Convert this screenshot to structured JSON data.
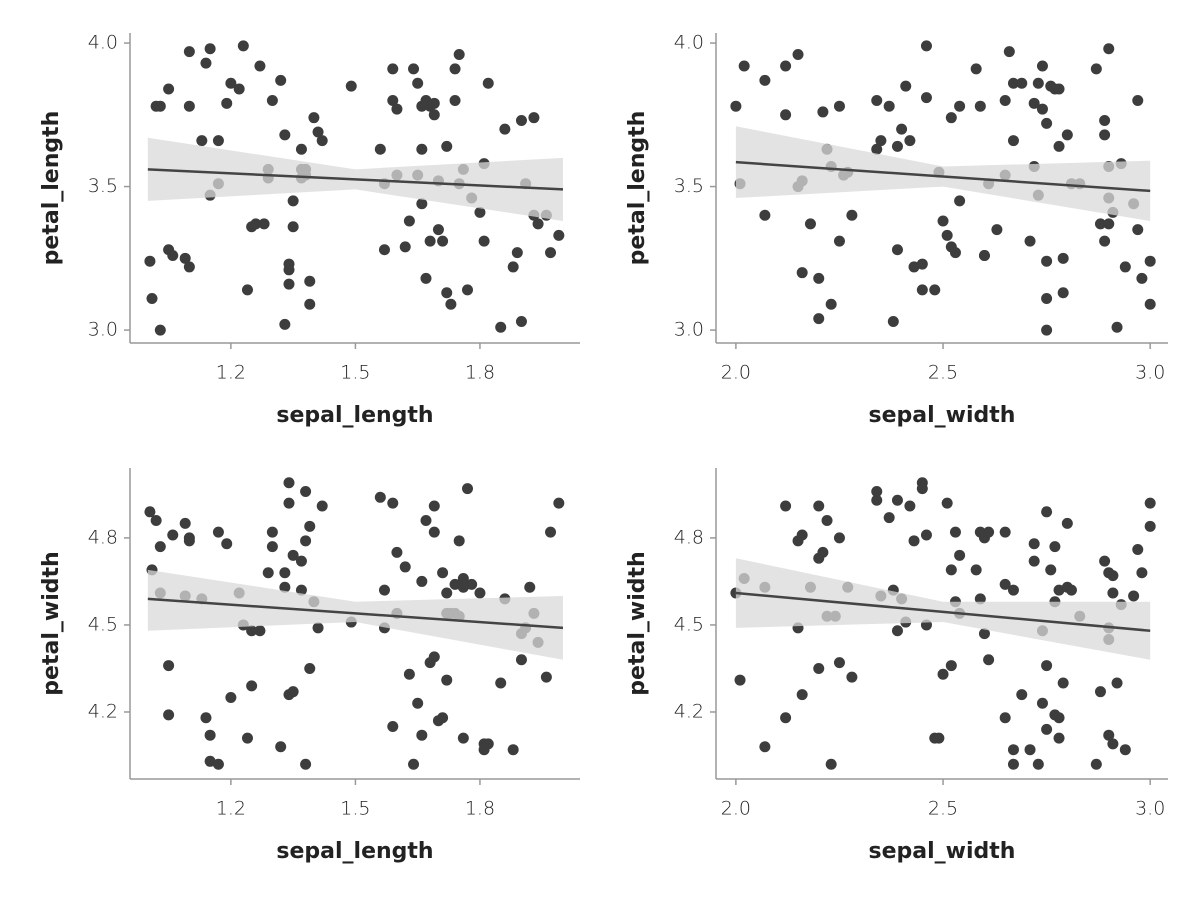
{
  "chart_data": [
    {
      "type": "scatter",
      "x_label": "sepal_length",
      "y_label": "petal_length",
      "color": "#3d3d3d",
      "xlim": [
        0.957,
        2.041
      ],
      "ylim": [
        2.955,
        4.035
      ],
      "xticks": [
        1.2,
        1.5,
        1.8
      ],
      "yticks": [
        {
          "value": 3.0,
          "label": "3.0"
        },
        3.5,
        {
          "value": 4.0,
          "label": "4.0"
        }
      ],
      "x": [
        1.005,
        1.01,
        1.02,
        1.03,
        1.03,
        1.05,
        1.05,
        1.06,
        1.09,
        1.1,
        1.1,
        1.1,
        1.13,
        1.14,
        1.15,
        1.15,
        1.17,
        1.17,
        1.19,
        1.2,
        1.22,
        1.23,
        1.24,
        1.25,
        1.26,
        1.27,
        1.28,
        1.29,
        1.29,
        1.3,
        1.32,
        1.33,
        1.33,
        1.34,
        1.34,
        1.34,
        1.35,
        1.35,
        1.37,
        1.37,
        1.37,
        1.38,
        1.38,
        1.39,
        1.39,
        1.4,
        1.41,
        1.42,
        1.49,
        1.56,
        1.57,
        1.57,
        1.59,
        1.59,
        1.6,
        1.6,
        1.62,
        1.63,
        1.64,
        1.65,
        1.65,
        1.66,
        1.66,
        1.66,
        1.67,
        1.67,
        1.68,
        1.68,
        1.69,
        1.69,
        1.7,
        1.7,
        1.71,
        1.72,
        1.72,
        1.73,
        1.74,
        1.74,
        1.75,
        1.75,
        1.76,
        1.77,
        1.78,
        1.8,
        1.81,
        1.81,
        1.82,
        1.85,
        1.86,
        1.88,
        1.89,
        1.9,
        1.9,
        1.91,
        1.93,
        1.93,
        1.94,
        1.96,
        1.97,
        1.99
      ],
      "values": [
        3.24,
        3.11,
        3.78,
        3.0,
        3.78,
        3.84,
        3.28,
        3.26,
        3.25,
        3.97,
        3.78,
        3.22,
        3.66,
        3.93,
        3.47,
        3.98,
        3.51,
        3.66,
        3.79,
        3.86,
        3.84,
        3.99,
        3.14,
        3.36,
        3.37,
        3.92,
        3.37,
        3.56,
        3.53,
        3.8,
        3.87,
        3.02,
        3.68,
        3.21,
        3.23,
        3.16,
        3.36,
        3.45,
        3.56,
        3.53,
        3.63,
        3.54,
        3.56,
        3.09,
        3.17,
        3.74,
        3.69,
        3.66,
        3.85,
        3.63,
        3.28,
        3.51,
        3.91,
        3.8,
        3.77,
        3.54,
        3.29,
        3.38,
        3.91,
        3.86,
        3.54,
        3.44,
        3.63,
        3.78,
        3.8,
        3.18,
        3.31,
        3.78,
        3.75,
        3.79,
        3.35,
        3.52,
        3.31,
        3.64,
        3.13,
        3.09,
        3.91,
        3.8,
        3.51,
        3.96,
        3.56,
        3.14,
        3.46,
        3.41,
        3.31,
        3.58,
        3.86,
        3.01,
        3.7,
        3.22,
        3.27,
        3.03,
        3.73,
        3.51,
        3.74,
        3.4,
        3.37,
        3.4,
        3.27,
        3.33
      ],
      "trend": {
        "x": [
          1.0,
          1.5,
          2.0
        ],
        "y": [
          3.56,
          3.525,
          3.49
        ],
        "upper": [
          3.67,
          3.56,
          3.6
        ],
        "lower": [
          3.45,
          3.49,
          3.38
        ]
      }
    },
    {
      "type": "scatter",
      "x_label": "sepal_width",
      "y_label": "petal_length",
      "color": "#3d3d3d",
      "xlim": [
        1.952,
        3.043
      ],
      "ylim": [
        2.955,
        4.035
      ],
      "xticks": [
        {
          "value": 2.0,
          "label": "2.0"
        },
        2.5,
        {
          "value": 3.0,
          "label": "3.0"
        }
      ],
      "yticks": [
        {
          "value": 3.0,
          "label": "3.0"
        },
        3.5,
        {
          "value": 4.0,
          "label": "4.0"
        }
      ],
      "x": [
        2.0,
        2.01,
        2.02,
        2.07,
        2.07,
        2.12,
        2.12,
        2.15,
        2.15,
        2.16,
        2.16,
        2.18,
        2.2,
        2.2,
        2.21,
        2.22,
        2.23,
        2.23,
        2.25,
        2.25,
        2.26,
        2.27,
        2.28,
        2.34,
        2.34,
        2.35,
        2.37,
        2.38,
        2.39,
        2.39,
        2.4,
        2.41,
        2.42,
        2.43,
        2.45,
        2.45,
        2.46,
        2.46,
        2.48,
        2.49,
        2.5,
        2.51,
        2.52,
        2.52,
        2.53,
        2.54,
        2.54,
        2.58,
        2.59,
        2.6,
        2.6,
        2.61,
        2.63,
        2.65,
        2.65,
        2.66,
        2.67,
        2.67,
        2.69,
        2.71,
        2.72,
        2.72,
        2.73,
        2.73,
        2.74,
        2.74,
        2.75,
        2.75,
        2.75,
        2.75,
        2.76,
        2.77,
        2.78,
        2.78,
        2.79,
        2.79,
        2.8,
        2.81,
        2.83,
        2.87,
        2.88,
        2.89,
        2.89,
        2.89,
        2.9,
        2.9,
        2.9,
        2.9,
        2.91,
        2.92,
        2.93,
        2.94,
        2.96,
        2.97,
        2.97,
        2.98,
        3.0,
        3.0
      ],
      "values": [
        3.78,
        3.51,
        3.92,
        3.4,
        3.87,
        3.92,
        3.75,
        3.96,
        3.5,
        3.52,
        3.2,
        3.37,
        3.18,
        3.04,
        3.76,
        3.63,
        3.09,
        3.57,
        3.31,
        3.78,
        3.54,
        3.55,
        3.4,
        3.8,
        3.63,
        3.66,
        3.78,
        3.03,
        3.64,
        3.28,
        3.7,
        3.85,
        3.66,
        3.22,
        3.23,
        3.14,
        3.81,
        3.99,
        3.14,
        3.55,
        3.38,
        3.33,
        3.29,
        3.74,
        3.27,
        3.78,
        3.45,
        3.91,
        3.78,
        3.26,
        3.26,
        3.51,
        3.35,
        3.54,
        3.8,
        3.97,
        3.66,
        3.86,
        3.86,
        3.31,
        3.57,
        3.79,
        3.47,
        3.86,
        3.92,
        3.77,
        3.24,
        3.72,
        3.11,
        3.0,
        3.85,
        3.84,
        3.64,
        3.84,
        3.25,
        3.13,
        3.68,
        3.51,
        3.51,
        3.91,
        3.37,
        3.73,
        3.68,
        3.31,
        3.46,
        3.98,
        3.37,
        3.57,
        3.41,
        3.01,
        3.58,
        3.22,
        3.44,
        3.35,
        3.8,
        3.18,
        3.24,
        3.09
      ],
      "trend": {
        "x": [
          2.0,
          2.5,
          3.0
        ],
        "y": [
          3.585,
          3.535,
          3.485
        ],
        "upper": [
          3.71,
          3.57,
          3.59
        ],
        "lower": [
          3.46,
          3.5,
          3.38
        ]
      }
    },
    {
      "type": "scatter",
      "x_label": "sepal_length",
      "y_label": "petal_width",
      "color": "#3d3d3d",
      "xlim": [
        0.957,
        2.041
      ],
      "ylim": [
        3.969,
        5.041
      ],
      "xticks": [
        1.2,
        1.5,
        1.8
      ],
      "yticks": [
        4.2,
        4.5,
        4.8
      ],
      "x": [
        1.005,
        1.01,
        1.02,
        1.03,
        1.03,
        1.05,
        1.05,
        1.06,
        1.09,
        1.09,
        1.1,
        1.1,
        1.13,
        1.14,
        1.15,
        1.15,
        1.17,
        1.17,
        1.19,
        1.2,
        1.22,
        1.23,
        1.24,
        1.25,
        1.25,
        1.27,
        1.29,
        1.3,
        1.3,
        1.32,
        1.33,
        1.33,
        1.34,
        1.34,
        1.34,
        1.35,
        1.35,
        1.37,
        1.37,
        1.38,
        1.38,
        1.38,
        1.39,
        1.39,
        1.4,
        1.41,
        1.42,
        1.49,
        1.56,
        1.57,
        1.57,
        1.59,
        1.6,
        1.6,
        1.59,
        1.62,
        1.63,
        1.64,
        1.65,
        1.66,
        1.66,
        1.67,
        1.68,
        1.69,
        1.69,
        1.69,
        1.7,
        1.71,
        1.71,
        1.72,
        1.72,
        1.72,
        1.73,
        1.74,
        1.74,
        1.75,
        1.75,
        1.76,
        1.76,
        1.76,
        1.77,
        1.78,
        1.8,
        1.81,
        1.81,
        1.82,
        1.85,
        1.86,
        1.88,
        1.9,
        1.9,
        1.91,
        1.92,
        1.93,
        1.94,
        1.96,
        1.97,
        1.99
      ],
      "values": [
        4.89,
        4.69,
        4.86,
        4.61,
        4.77,
        4.36,
        4.19,
        4.81,
        4.6,
        4.85,
        4.8,
        4.79,
        4.59,
        4.18,
        4.03,
        4.12,
        4.82,
        4.02,
        4.78,
        4.25,
        4.61,
        4.5,
        4.11,
        4.29,
        4.48,
        4.48,
        4.68,
        4.82,
        4.77,
        4.08,
        4.63,
        4.68,
        4.99,
        4.26,
        4.92,
        4.74,
        4.27,
        4.72,
        4.62,
        4.02,
        4.96,
        4.79,
        4.84,
        4.35,
        4.58,
        4.49,
        4.91,
        4.51,
        4.94,
        4.49,
        4.62,
        4.92,
        4.75,
        4.54,
        4.15,
        4.7,
        4.33,
        4.02,
        4.23,
        4.65,
        4.12,
        4.86,
        4.37,
        4.91,
        4.39,
        4.82,
        4.17,
        4.18,
        4.68,
        4.54,
        4.31,
        4.61,
        4.54,
        4.54,
        4.64,
        4.53,
        4.79,
        4.66,
        4.11,
        4.63,
        4.97,
        4.64,
        4.61,
        4.09,
        4.07,
        4.09,
        4.3,
        4.59,
        4.07,
        4.38,
        4.47,
        4.49,
        4.63,
        4.54,
        4.44,
        4.32,
        4.82,
        4.92
      ],
      "trend": {
        "x": [
          1.0,
          1.5,
          2.0
        ],
        "y": [
          4.59,
          4.54,
          4.49
        ],
        "upper": [
          4.69,
          4.58,
          4.6
        ],
        "lower": [
          4.48,
          4.51,
          4.38
        ]
      }
    },
    {
      "type": "scatter",
      "x_label": "sepal_width",
      "y_label": "petal_width",
      "color": "#3d3d3d",
      "xlim": [
        1.952,
        3.043
      ],
      "ylim": [
        3.969,
        5.041
      ],
      "xticks": [
        {
          "value": 2.0,
          "label": "2.0"
        },
        2.5,
        {
          "value": 3.0,
          "label": "3.0"
        }
      ],
      "yticks": [
        4.2,
        4.5,
        4.8
      ],
      "x": [
        2.0,
        2.01,
        2.02,
        2.07,
        2.07,
        2.12,
        2.12,
        2.15,
        2.15,
        2.16,
        2.16,
        2.18,
        2.2,
        2.2,
        2.2,
        2.21,
        2.22,
        2.22,
        2.23,
        2.24,
        2.25,
        2.25,
        2.27,
        2.28,
        2.34,
        2.34,
        2.35,
        2.37,
        2.38,
        2.39,
        2.39,
        2.4,
        2.41,
        2.42,
        2.43,
        2.45,
        2.45,
        2.46,
        2.46,
        2.48,
        2.49,
        2.5,
        2.51,
        2.52,
        2.52,
        2.53,
        2.53,
        2.54,
        2.54,
        2.58,
        2.59,
        2.59,
        2.6,
        2.6,
        2.61,
        2.61,
        2.65,
        2.65,
        2.65,
        2.67,
        2.67,
        2.67,
        2.69,
        2.71,
        2.72,
        2.72,
        2.73,
        2.74,
        2.74,
        2.75,
        2.75,
        2.75,
        2.76,
        2.77,
        2.77,
        2.77,
        2.78,
        2.78,
        2.78,
        2.79,
        2.8,
        2.8,
        2.81,
        2.83,
        2.87,
        2.88,
        2.89,
        2.9,
        2.9,
        2.9,
        2.9,
        2.91,
        2.91,
        2.91,
        2.92,
        2.93,
        2.94,
        2.96,
        2.97,
        2.98,
        3.0,
        3.0
      ],
      "values": [
        4.61,
        4.31,
        4.66,
        4.08,
        4.63,
        4.18,
        4.91,
        4.79,
        4.49,
        4.26,
        4.81,
        4.63,
        4.35,
        4.91,
        4.73,
        4.75,
        4.86,
        4.53,
        4.02,
        4.53,
        4.37,
        4.8,
        4.63,
        4.32,
        4.96,
        4.93,
        4.6,
        4.87,
        4.62,
        4.93,
        4.48,
        4.59,
        4.51,
        4.91,
        4.79,
        4.99,
        4.97,
        4.81,
        4.5,
        4.11,
        4.11,
        4.33,
        4.92,
        4.36,
        4.69,
        4.58,
        4.82,
        4.54,
        4.74,
        4.69,
        4.82,
        4.59,
        4.47,
        4.8,
        4.38,
        4.82,
        4.18,
        4.82,
        4.64,
        4.62,
        4.07,
        4.02,
        4.26,
        4.07,
        4.78,
        4.72,
        4.02,
        4.23,
        4.48,
        4.14,
        4.89,
        4.36,
        4.69,
        4.19,
        4.58,
        4.77,
        4.62,
        4.18,
        4.11,
        4.3,
        4.85,
        4.63,
        4.62,
        4.53,
        4.02,
        4.27,
        4.72,
        4.68,
        4.49,
        4.45,
        4.12,
        4.61,
        4.67,
        4.09,
        4.3,
        4.57,
        4.07,
        4.6,
        4.76,
        4.68,
        4.92,
        4.84
      ],
      "trend": {
        "x": [
          2.0,
          2.5,
          3.0
        ],
        "y": [
          4.61,
          4.545,
          4.48
        ],
        "upper": [
          4.73,
          4.58,
          4.58
        ],
        "lower": [
          4.49,
          4.51,
          4.38
        ]
      }
    }
  ]
}
